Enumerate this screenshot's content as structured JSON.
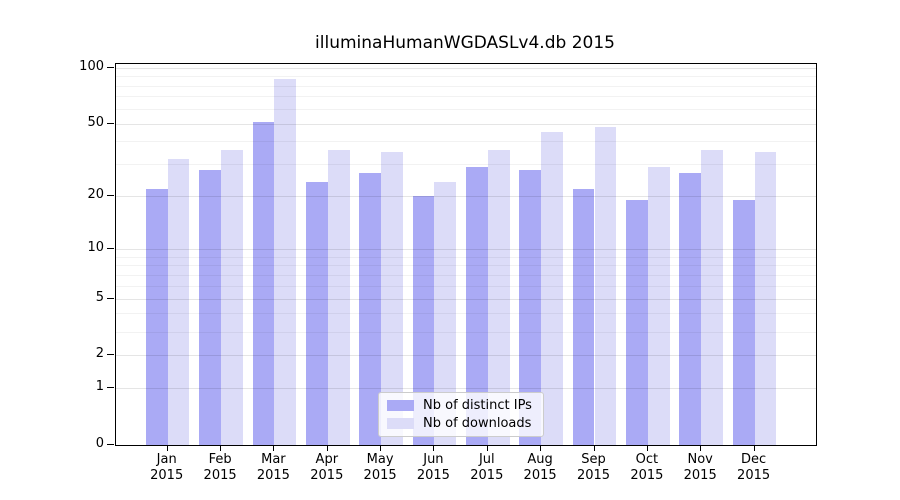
{
  "title": "illuminaHumanWGDASLv4.db 2015",
  "chart_data": {
    "type": "bar",
    "title": "illuminaHumanWGDASLv4.db 2015",
    "categories": [
      "Jan",
      "Feb",
      "Mar",
      "Apr",
      "May",
      "Jun",
      "Jul",
      "Aug",
      "Sep",
      "Oct",
      "Nov",
      "Dec"
    ],
    "year_label": "2015",
    "series": [
      {
        "name": "Nb of distinct IPs",
        "color": "#aaaaf5",
        "values": [
          22,
          28,
          51,
          24,
          27,
          20,
          29,
          28,
          22,
          19,
          27,
          19
        ]
      },
      {
        "name": "Nb of downloads",
        "color": "#dcdcf8",
        "values": [
          32,
          36,
          87,
          36,
          35,
          24,
          36,
          45,
          48,
          29,
          36,
          35
        ]
      }
    ],
    "xlabel": "",
    "ylabel": "",
    "yticks": [
      0,
      1,
      2,
      5,
      10,
      20,
      50,
      100
    ],
    "minor_gridlines": [
      3,
      4,
      6,
      7,
      8,
      9,
      30,
      40,
      60,
      70,
      80,
      90
    ],
    "scale": "log10(value+1)",
    "ylim": [
      0,
      105
    ],
    "grid": true,
    "legend_position": "bottom-center",
    "background_color": "#ffffff",
    "axis_color": "#000000"
  }
}
